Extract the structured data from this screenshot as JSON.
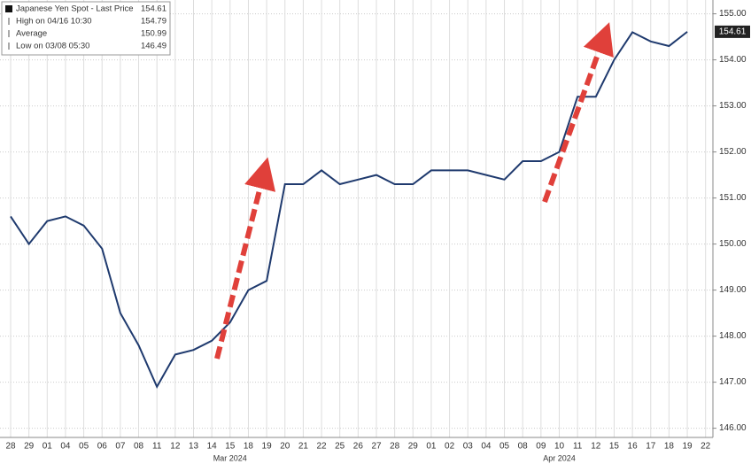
{
  "chart_data": {
    "type": "line",
    "categories": [
      "28",
      "29",
      "01",
      "04",
      "05",
      "06",
      "07",
      "08",
      "11",
      "12",
      "13",
      "14",
      "15",
      "18",
      "19",
      "20",
      "21",
      "22",
      "25",
      "26",
      "27",
      "28",
      "29",
      "01",
      "02",
      "03",
      "04",
      "05",
      "08",
      "09",
      "10",
      "11",
      "12",
      "15",
      "16",
      "17",
      "18",
      "19",
      "22"
    ],
    "month_labels": [
      "Mar 2024",
      "Apr 2024"
    ],
    "series": [
      {
        "name": "Japanese Yen Spot - Last Price",
        "color": "#1f3a6e",
        "values": [
          150.6,
          150.0,
          150.5,
          150.6,
          150.4,
          149.9,
          148.5,
          147.8,
          146.9,
          147.6,
          147.7,
          147.9,
          148.3,
          149.0,
          149.2,
          151.3,
          151.3,
          151.6,
          151.3,
          151.4,
          151.5,
          151.3,
          151.3,
          151.6,
          151.6,
          151.6,
          151.5,
          151.4,
          151.8,
          151.8,
          152.0,
          153.2,
          153.2,
          154.0,
          154.6,
          154.4,
          154.3,
          154.61,
          null
        ]
      }
    ],
    "stats": [
      {
        "label": "Japanese Yen Spot - Last Price",
        "value": 154.61
      },
      {
        "label": "High on 04/16 10:30",
        "value": 154.79
      },
      {
        "label": "Average",
        "value": 150.99
      },
      {
        "label": "Low on 03/08 05:30",
        "value": 146.49
      }
    ],
    "ylim": [
      145.8,
      155.3
    ],
    "yticks": [
      {
        "value": 146,
        "label": "146.00"
      },
      {
        "value": 147,
        "label": "147.00"
      },
      {
        "value": 148,
        "label": "148.00"
      },
      {
        "value": 149,
        "label": "149.00"
      },
      {
        "value": 150,
        "label": "150.00"
      },
      {
        "value": 151,
        "label": "151.00"
      },
      {
        "value": 152,
        "label": "152.00"
      },
      {
        "value": 153,
        "label": "153.00"
      },
      {
        "value": 154,
        "label": "154.00"
      },
      {
        "value": 155,
        "label": "155.00"
      }
    ],
    "grid": true
  }
}
